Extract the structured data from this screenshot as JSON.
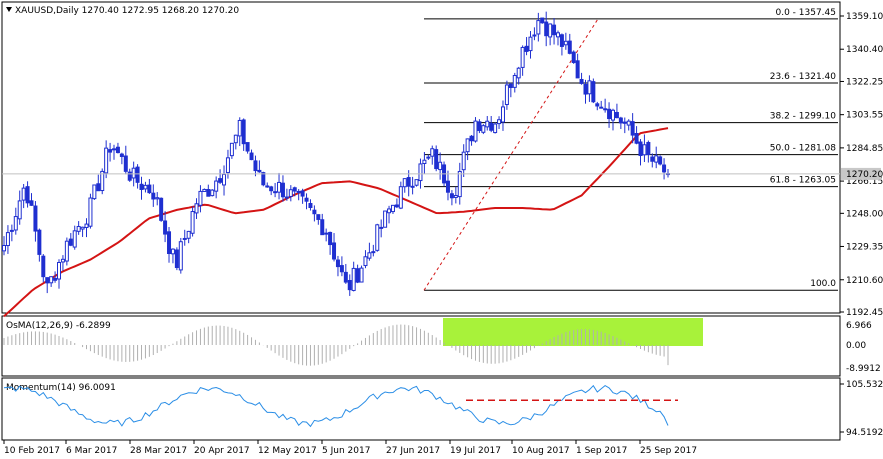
{
  "header": {
    "symbol_line": "XAUUSD,Daily  1270.40 1272.95 1268.20 1270.20",
    "osma_label": "OsMA(12,26,9) -6.2899",
    "momentum_label": "Momentum(14) 96.0091"
  },
  "chart_data": {
    "type": "candlestick",
    "symbol": "XAUUSD",
    "timeframe": "Daily",
    "ohlc_last": {
      "open": 1270.4,
      "high": 1272.95,
      "low": 1268.2,
      "close": 1270.2
    },
    "current_price_label": "1270.20",
    "price_ticks": [
      "1359.10",
      "1340.40",
      "1322.25",
      "1303.55",
      "1284.85",
      "1266.15",
      "1248.00",
      "1229.35",
      "1210.60",
      "1192.45"
    ],
    "price_tick_values": [
      1359.1,
      1340.4,
      1322.25,
      1303.55,
      1284.85,
      1266.15,
      1248.0,
      1229.35,
      1210.6,
      1192.45
    ],
    "x_ticks": [
      "10 Feb 2017",
      "6 Mar 2017",
      "28 Mar 2017",
      "20 Apr 2017",
      "12 May 2017",
      "5 Jun 2017",
      "27 Jun 2017",
      "19 Jul 2017",
      "10 Aug 2017",
      "1 Sep 2017",
      "25 Sep 2017"
    ],
    "fib_levels": [
      {
        "label": "0.0 - 1357.45",
        "value": 1357.45
      },
      {
        "label": "23.6 - 1321.40",
        "value": 1321.4
      },
      {
        "label": "38.2 - 1299.10",
        "value": 1299.1
      },
      {
        "label": "50.0 - 1281.08",
        "value": 1281.08
      },
      {
        "label": "61.8 - 1263.05",
        "value": 1263.05
      },
      {
        "label": "100.0",
        "value": 1204.7
      }
    ],
    "ma_anchors": [
      1190,
      1205,
      1215,
      1222,
      1232,
      1245,
      1250,
      1253,
      1248,
      1250,
      1258,
      1265,
      1266,
      1262,
      1255,
      1248,
      1249,
      1251,
      1251,
      1250,
      1258,
      1275,
      1293,
      1296
    ],
    "close_anchors": [
      1230,
      1265,
      1205,
      1232,
      1250,
      1288,
      1268,
      1260,
      1218,
      1255,
      1268,
      1295,
      1265,
      1262,
      1252,
      1240,
      1205,
      1225,
      1250,
      1268,
      1280,
      1260,
      1300,
      1300,
      1335,
      1358,
      1345,
      1322,
      1310,
      1298,
      1280,
      1270
    ],
    "momentum": {
      "ticks": [
        "105.5329",
        "94.5192"
      ],
      "tick_values": [
        105.5329,
        94.5192
      ],
      "last": 96.0091
    },
    "osma": {
      "ticks": [
        "6.966",
        "0.00",
        "-8.9912"
      ],
      "tick_values": [
        6.966,
        0.0,
        -8.9912
      ],
      "last": -6.2899
    },
    "colors": {
      "bull": "#1f2fd0",
      "bear": "#1f2fd0",
      "ma": "#d41414",
      "fib": "#000000",
      "trend_dash": "#d41414",
      "momentum_line": "#2b8ee6",
      "momentum_res": "#d41414",
      "osma_hist": "#b0b0b0",
      "osma_highlight": "#a8f23a",
      "current_price_bg": "#c8c8c8"
    },
    "grid": false
  }
}
